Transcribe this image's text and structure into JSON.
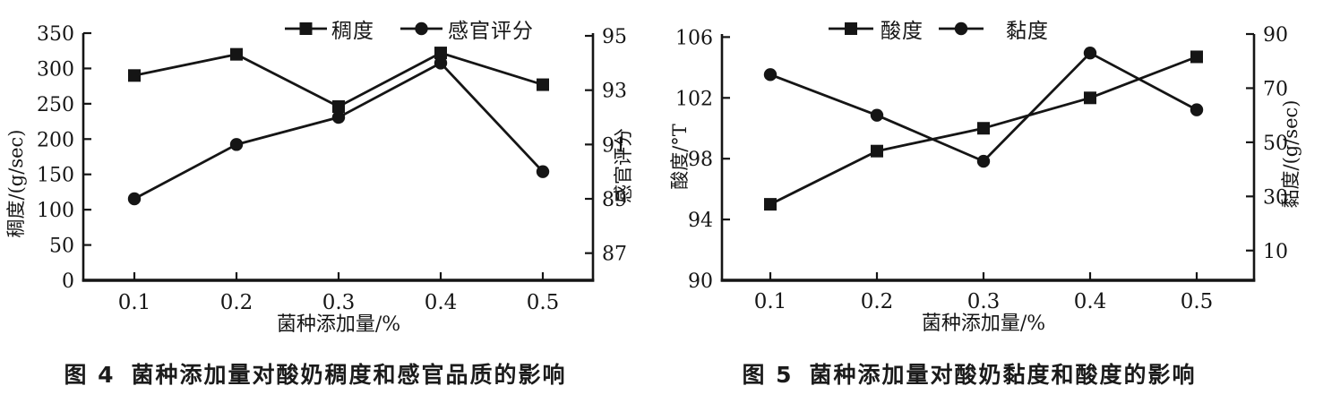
{
  "figure": {
    "background": "#ffffff",
    "ink_color": "#151515"
  },
  "chart_data": [
    {
      "id": "fig4",
      "type": "line",
      "title": "图 4 菌种添加量对酸奶稠度和感官品质的影响",
      "caption": {
        "tag": "图 4",
        "text": "菌种添加量对酸奶稠度和感官品质的影响"
      },
      "xlabel": "菌种添加量/%",
      "x_ticks": [
        "0.1",
        "0.2",
        "0.3",
        "0.4",
        "0.5"
      ],
      "x": [
        0.1,
        0.2,
        0.3,
        0.4,
        0.5
      ],
      "series": [
        {
          "name": "稠度",
          "axis": "left",
          "marker": "square",
          "values": [
            290,
            320,
            246,
            322,
            277
          ]
        },
        {
          "name": "感官评分",
          "axis": "right",
          "marker": "circle",
          "values": [
            89,
            91,
            92,
            94,
            90
          ]
        }
      ],
      "left_axis": {
        "label": "稠度/(g/sec)",
        "ticks": [
          0,
          50,
          100,
          150,
          200,
          250,
          300,
          350
        ],
        "range": [
          0,
          350
        ]
      },
      "right_axis": {
        "label": "感官评分",
        "ticks": [
          87,
          89,
          91,
          93,
          95
        ],
        "range": [
          86.0,
          95.1
        ]
      },
      "legend_position": "top-center",
      "grid": false
    },
    {
      "id": "fig5",
      "type": "line",
      "title": "图 5 菌种添加量对酸奶黏度和酸度的影响",
      "caption": {
        "tag": "图 5",
        "text": "菌种添加量对酸奶黏度和酸度的影响"
      },
      "xlabel": "菌种添加量/%",
      "x_ticks": [
        "0.1",
        "0.2",
        "0.3",
        "0.4",
        "0.5"
      ],
      "x": [
        0.1,
        0.2,
        0.3,
        0.4,
        0.5
      ],
      "series": [
        {
          "name": "酸度",
          "axis": "left",
          "marker": "square",
          "values": [
            95,
            98.5,
            100,
            102,
            104.7
          ]
        },
        {
          "name": "黏度",
          "axis": "right",
          "marker": "circle",
          "values": [
            75,
            60,
            43,
            83,
            62
          ]
        }
      ],
      "left_axis": {
        "label": "酸度/°T",
        "ticks": [
          90,
          94,
          98,
          102,
          106
        ],
        "range": [
          90,
          106.2
        ]
      },
      "right_axis": {
        "label": "黏度/(g/sec)",
        "ticks": [
          10,
          30,
          50,
          70,
          90
        ],
        "range": [
          -1,
          90
        ]
      },
      "legend_position": "top-center",
      "grid": false
    }
  ]
}
